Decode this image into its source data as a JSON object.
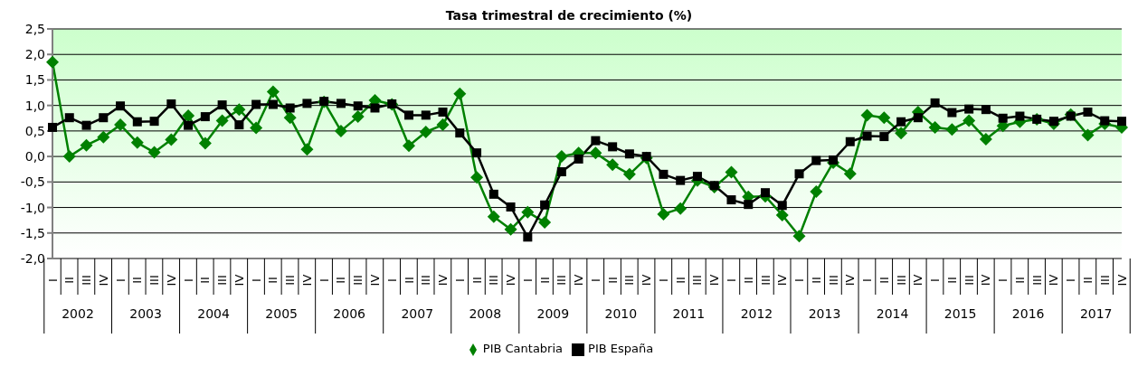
{
  "chart_data": {
    "type": "line",
    "title": "Tasa trimestral de crecimiento (%)",
    "categories": [
      "I",
      "II",
      "III",
      "IV",
      "I",
      "II",
      "III",
      "IV",
      "I",
      "II",
      "III",
      "IV",
      "I",
      "II",
      "III",
      "IV",
      "I",
      "II",
      "III",
      "IV",
      "I",
      "II",
      "III",
      "IV",
      "I",
      "II",
      "III",
      "IV",
      "I",
      "II",
      "III",
      "IV",
      "I",
      "II",
      "III",
      "IV",
      "I",
      "II",
      "III",
      "IV",
      "I",
      "II",
      "III",
      "IV",
      "I",
      "II",
      "III",
      "IV",
      "I",
      "II",
      "III",
      "IV",
      "I",
      "II",
      "III",
      "IV",
      "I",
      "II",
      "III",
      "IV",
      "I",
      "II",
      "III",
      "IV"
    ],
    "annotations": [
      "2002",
      "2003",
      "2004",
      "2005",
      "2006",
      "2007",
      "2008",
      "2009",
      "2010",
      "2011",
      "2012",
      "2013",
      "2014",
      "2015",
      "2016",
      "2017"
    ],
    "series": [
      {
        "name": "PIB Cantabria",
        "color": "#008000",
        "marker": "diamond",
        "values": [
          1.85,
          0.0,
          0.22,
          0.38,
          0.62,
          0.27,
          0.08,
          0.33,
          0.8,
          0.26,
          0.7,
          0.92,
          0.56,
          1.27,
          0.76,
          0.14,
          1.07,
          0.5,
          0.78,
          1.1,
          1.02,
          0.21,
          0.48,
          0.62,
          1.23,
          -0.41,
          -1.18,
          -1.43,
          -1.09,
          -1.29,
          0.0,
          0.07,
          0.07,
          -0.16,
          -0.35,
          -0.03,
          -1.13,
          -1.02,
          -0.47,
          -0.6,
          -0.31,
          -0.79,
          -0.78,
          -1.15,
          -1.56,
          -0.69,
          -0.12,
          -0.34,
          0.81,
          0.76,
          0.46,
          0.87,
          0.57,
          0.53,
          0.7,
          0.34,
          0.6,
          0.68,
          0.73,
          0.64,
          0.82,
          0.42,
          0.64,
          0.57
        ]
      },
      {
        "name": "PIB España",
        "color": "#000000",
        "marker": "square",
        "values": [
          0.57,
          0.76,
          0.61,
          0.76,
          0.99,
          0.68,
          0.69,
          1.03,
          0.61,
          0.78,
          1.01,
          0.62,
          1.02,
          1.02,
          0.95,
          1.04,
          1.08,
          1.04,
          0.99,
          0.95,
          1.03,
          0.81,
          0.81,
          0.87,
          0.46,
          0.07,
          -0.74,
          -0.99,
          -1.58,
          -0.95,
          -0.3,
          -0.05,
          0.31,
          0.19,
          0.05,
          0.0,
          -0.35,
          -0.47,
          -0.39,
          -0.57,
          -0.85,
          -0.94,
          -0.71,
          -0.96,
          -0.34,
          -0.08,
          -0.07,
          0.29,
          0.4,
          0.39,
          0.68,
          0.76,
          1.05,
          0.86,
          0.93,
          0.92,
          0.75,
          0.79,
          0.73,
          0.69,
          0.79,
          0.87,
          0.7,
          0.69
        ]
      }
    ],
    "ylim": [
      -2.0,
      2.5
    ],
    "yticks": [
      {
        "value": -2,
        "label": "-2,0"
      },
      {
        "value": -1.5,
        "label": "-1,5"
      },
      {
        "value": -1,
        "label": "-1,0"
      },
      {
        "value": -0.5,
        "label": "-0,5"
      },
      {
        "value": 0,
        "label": "0,0"
      },
      {
        "value": 0.5,
        "label": "0,5"
      },
      {
        "value": 1,
        "label": "1,0"
      },
      {
        "value": 1.5,
        "label": "1,5"
      },
      {
        "value": 2,
        "label": "2,0"
      },
      {
        "value": 2.5,
        "label": "2,5"
      }
    ],
    "grid": "y",
    "legend": "bottom",
    "line_style": "solid"
  }
}
